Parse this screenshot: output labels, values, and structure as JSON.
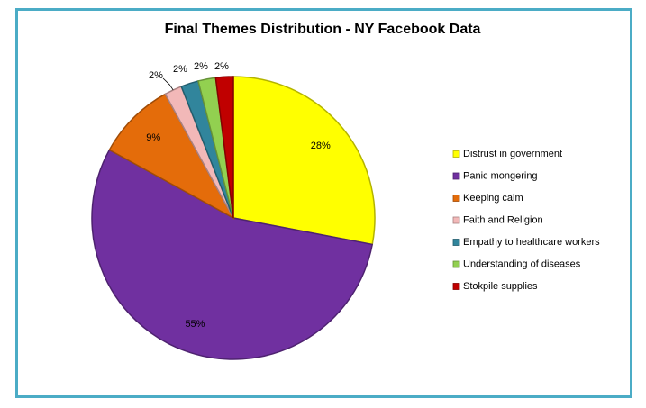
{
  "chart_data": {
    "type": "pie",
    "title": "Final Themes Distribution - NY Facebook Data",
    "categories": [
      "Distrust in government",
      "Panic mongering",
      "Keeping calm",
      "Faith and Religion",
      "Empathy to healthcare workers",
      "Understanding of diseases",
      "Stokpile supplies"
    ],
    "values": [
      28,
      55,
      9,
      2,
      2,
      2,
      2
    ],
    "value_labels": [
      "28%",
      "55%",
      "9%",
      "2%",
      "2%",
      "2%",
      "2%"
    ],
    "colors": [
      "#ffff00",
      "#7030a0",
      "#e46c0a",
      "#f2b8b8",
      "#31859c",
      "#92d050",
      "#c00000"
    ],
    "legend": "right"
  }
}
